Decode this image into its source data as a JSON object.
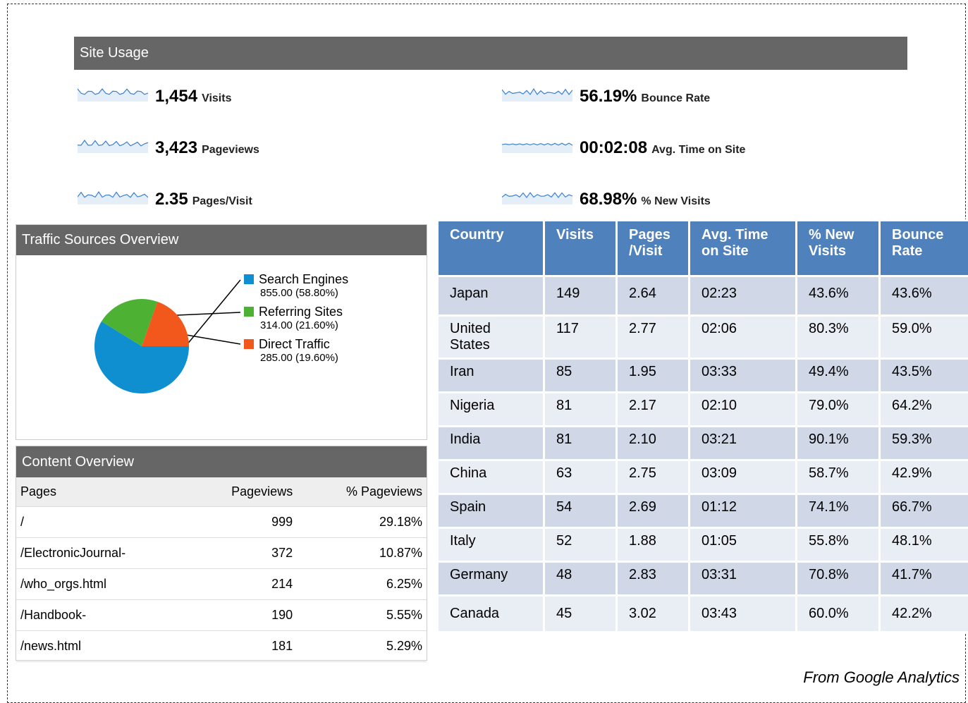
{
  "site_usage": {
    "title": "Site Usage",
    "metrics": [
      {
        "value": "1,454",
        "label": "Visits"
      },
      {
        "value": "3,423",
        "label": "Pageviews"
      },
      {
        "value": "2.35",
        "label": "Pages/Visit"
      },
      {
        "value": "56.19%",
        "label": "Bounce Rate"
      },
      {
        "value": "00:02:08",
        "label": "Avg. Time on Site"
      },
      {
        "value": "68.98%",
        "label": "% New Visits"
      }
    ]
  },
  "traffic_sources": {
    "title": "Traffic Sources Overview",
    "chart": {
      "type": "pie",
      "categories": [
        "Search Engines",
        "Referring Sites",
        "Direct Traffic"
      ],
      "values": [
        855,
        314,
        285
      ],
      "value_labels": [
        "855.00 (58.80%)",
        "314.00 (21.60%)",
        "285.00 (19.60%)"
      ],
      "colors": [
        "#0f8fd0",
        "#4db233",
        "#f2581c"
      ]
    }
  },
  "content_overview": {
    "title": "Content Overview",
    "columns": [
      "Pages",
      "Pageviews",
      "% Pageviews"
    ],
    "rows": [
      [
        "/",
        "999",
        "29.18%"
      ],
      [
        "/ElectronicJournal-",
        "372",
        "10.87%"
      ],
      [
        "/who_orgs.html",
        "214",
        "6.25%"
      ],
      [
        "/Handbook-",
        "190",
        "5.55%"
      ],
      [
        "/news.html",
        "181",
        "5.29%"
      ]
    ]
  },
  "country_table": {
    "columns": [
      "Country",
      "Visits",
      "Pages /Visit",
      "Avg. Time on Site",
      "% New Visits",
      "Bounce Rate"
    ],
    "rows": [
      [
        "Japan",
        "149",
        "2.64",
        "02:23",
        "43.6%",
        "43.6%"
      ],
      [
        "United States",
        "117",
        "2.77",
        "02:06",
        "80.3%",
        "59.0%"
      ],
      [
        "Iran",
        "85",
        "1.95",
        "03:33",
        "49.4%",
        "43.5%"
      ],
      [
        "Nigeria",
        "81",
        "2.17",
        "02:10",
        "79.0%",
        "64.2%"
      ],
      [
        "India",
        "81",
        "2.10",
        "03:21",
        "90.1%",
        "59.3%"
      ],
      [
        "China",
        "63",
        "2.75",
        "03:09",
        "58.7%",
        "42.9%"
      ],
      [
        "Spain",
        "54",
        "2.69",
        "01:12",
        "74.1%",
        "66.7%"
      ],
      [
        "Italy",
        "52",
        "1.88",
        "01:05",
        "55.8%",
        "48.1%"
      ],
      [
        "Germany",
        "48",
        "2.83",
        "03:31",
        "70.8%",
        "41.7%"
      ],
      [
        "Canada",
        "45",
        "3.02",
        "03:43",
        "60.0%",
        "42.2%"
      ]
    ]
  },
  "source": "From Google Analytics"
}
